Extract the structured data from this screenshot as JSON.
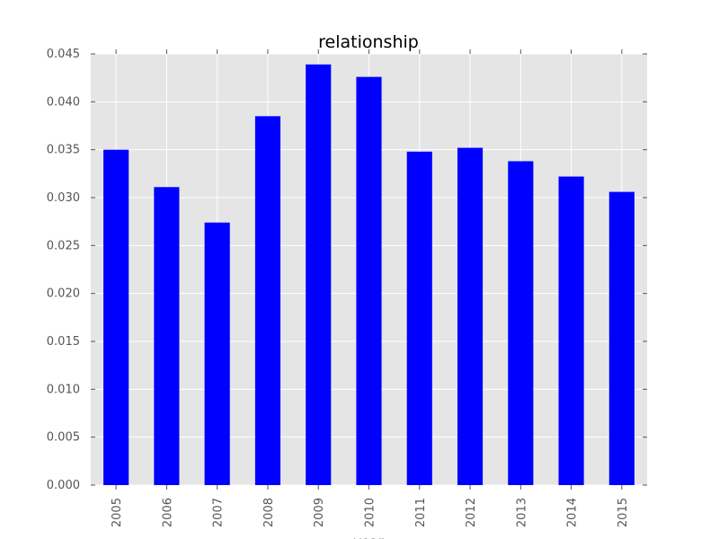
{
  "chart_data": {
    "type": "bar",
    "title": "relationship",
    "xlabel": "year",
    "ylabel": "",
    "categories": [
      "2005",
      "2006",
      "2007",
      "2008",
      "2009",
      "2010",
      "2011",
      "2012",
      "2013",
      "2014",
      "2015"
    ],
    "values": [
      0.035,
      0.0311,
      0.0274,
      0.0385,
      0.0439,
      0.0426,
      0.0348,
      0.0352,
      0.0338,
      0.0322,
      0.0306
    ],
    "ylim": [
      0,
      0.045
    ],
    "yticks": [
      "0.000",
      "0.005",
      "0.010",
      "0.015",
      "0.020",
      "0.025",
      "0.030",
      "0.035",
      "0.040",
      "0.045"
    ],
    "grid": true,
    "legend": "none",
    "colors": {
      "bar": "#0000ff",
      "plot_background": "#e5e5e5",
      "grid": "#ffffff",
      "tick_text": "#555555"
    }
  }
}
